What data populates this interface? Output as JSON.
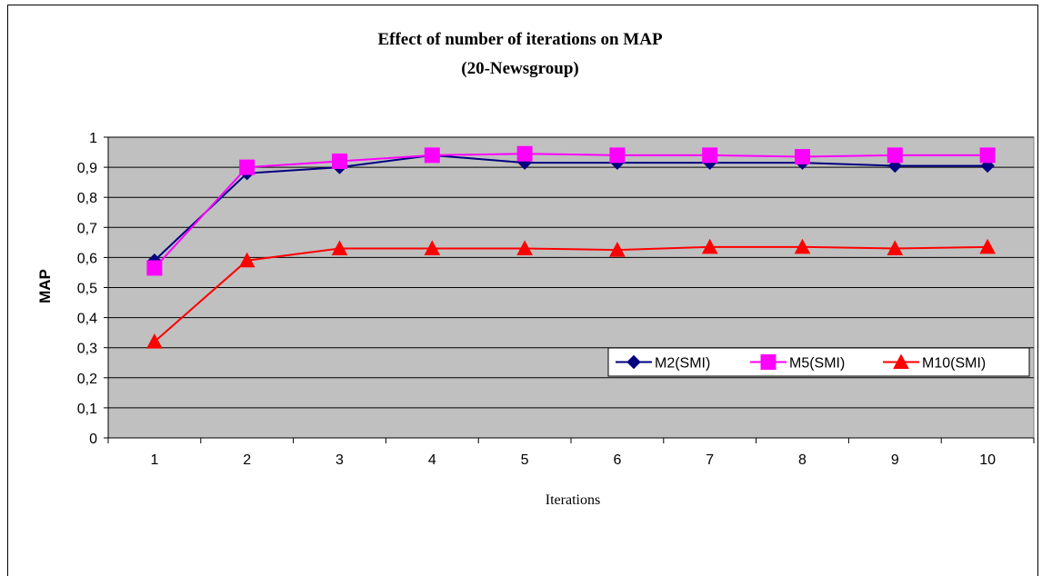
{
  "chart_data": {
    "type": "line",
    "title": "Effect of number of iterations on MAP",
    "subtitle": "(20-Newsgroup)",
    "xlabel": "Iterations",
    "ylabel": "MAP",
    "categories": [
      "1",
      "2",
      "3",
      "4",
      "5",
      "6",
      "7",
      "8",
      "9",
      "10"
    ],
    "yticks": [
      "0",
      "0,1",
      "0,2",
      "0,3",
      "0,4",
      "0,5",
      "0,6",
      "0,7",
      "0,8",
      "0,9",
      "1"
    ],
    "ylim": [
      0,
      1
    ],
    "grid": true,
    "legend_position": "right",
    "plot_background": "#c0c0c0",
    "series": [
      {
        "name": "M2(SMI)",
        "color": "#000080",
        "marker": "diamond",
        "values": [
          0.59,
          0.88,
          0.9,
          0.94,
          0.915,
          0.915,
          0.915,
          0.915,
          0.905,
          0.905
        ]
      },
      {
        "name": "M5(SMI)",
        "color": "#ff00ff",
        "marker": "square",
        "values": [
          0.565,
          0.9,
          0.92,
          0.94,
          0.945,
          0.94,
          0.94,
          0.935,
          0.94,
          0.94
        ]
      },
      {
        "name": "M10(SMI)",
        "color": "#ff0000",
        "marker": "triangle",
        "values": [
          0.32,
          0.59,
          0.63,
          0.63,
          0.63,
          0.625,
          0.635,
          0.635,
          0.63,
          0.635
        ]
      }
    ]
  }
}
